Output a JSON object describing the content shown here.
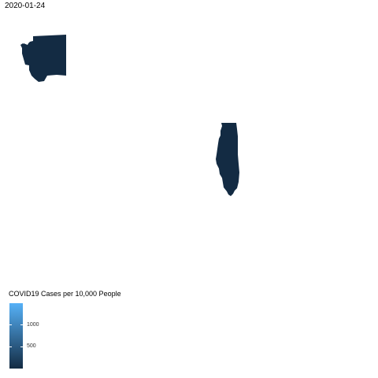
{
  "map": {
    "date": "2020-01-24",
    "fill_color": "#132B43",
    "regions": [
      {
        "name": "Washington",
        "fill": "#132B43"
      },
      {
        "name": "Illinois",
        "fill": "#132B43"
      }
    ]
  },
  "legend": {
    "title": "COVID19 Cases per 10,000 People",
    "color_low": "#132B43",
    "color_high": "#56B1F7",
    "range": [
      0,
      1500
    ],
    "ticks": [
      {
        "value": 1000,
        "label": "1000"
      },
      {
        "value": 500,
        "label": "500"
      }
    ]
  }
}
